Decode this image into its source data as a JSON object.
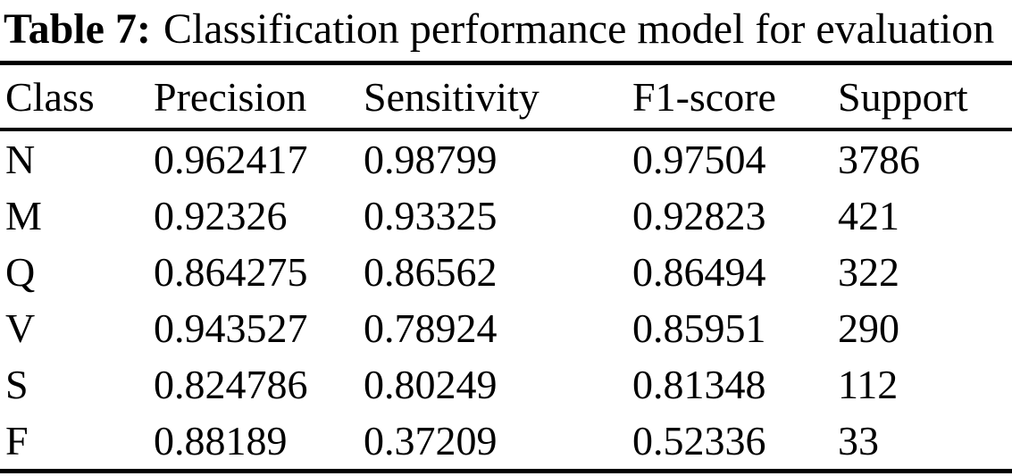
{
  "caption": {
    "label": "Table 7:",
    "text": "Classification performance model for evaluation"
  },
  "table": {
    "columns": [
      "Class",
      "Precision",
      "Sensitivity",
      "F1-score",
      "Support"
    ],
    "rows": [
      [
        "N",
        "0.962417",
        "0.98799",
        "0.97504",
        "3786"
      ],
      [
        "M",
        "0.92326",
        "0.93325",
        "0.92823",
        "421"
      ],
      [
        "Q",
        "0.864275",
        "0.86562",
        "0.86494",
        "322"
      ],
      [
        "V",
        "0.943527",
        "0.78924",
        "0.85951",
        "290"
      ],
      [
        "S",
        "0.824786",
        "0.80249",
        "0.81348",
        "112"
      ],
      [
        "F",
        "0.88189",
        "0.37209",
        "0.52336",
        "33"
      ]
    ]
  },
  "colors": {
    "text": "#000000",
    "background": "#ffffff",
    "rule": "#000000"
  }
}
